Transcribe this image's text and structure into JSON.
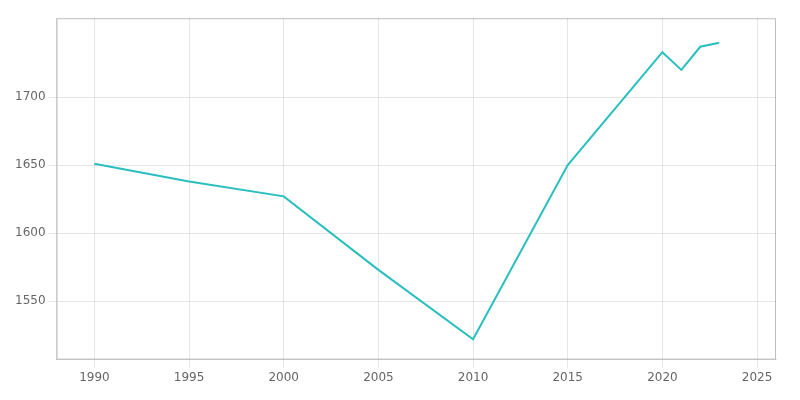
{
  "chart_data": {
    "type": "line",
    "x": [
      1990,
      1995,
      2000,
      2005,
      2010,
      2015,
      2020,
      2021,
      2022,
      2023
    ],
    "values": [
      1651,
      1638,
      1627,
      1573,
      1522,
      1650,
      1733,
      1720,
      1737,
      1740
    ],
    "color": "#2abfbf",
    "xlim": [
      1988,
      2026
    ],
    "ylim": [
      1507,
      1758
    ],
    "xticks": [
      1990,
      1995,
      2000,
      2005,
      2010,
      2015,
      2020,
      2025
    ],
    "yticks": [
      1550,
      1600,
      1650,
      1700
    ],
    "grid": true
  }
}
